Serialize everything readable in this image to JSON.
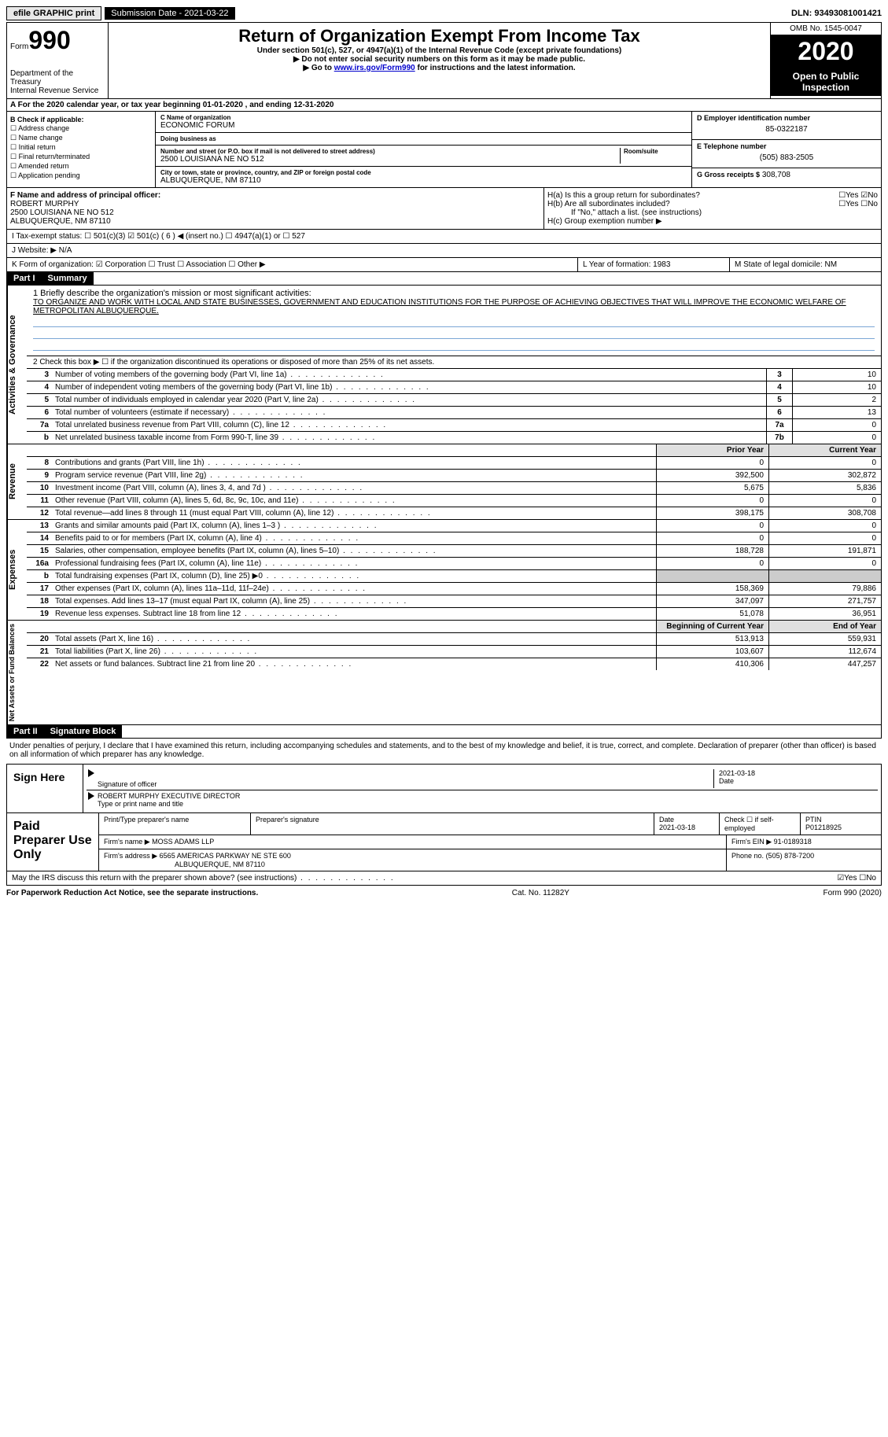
{
  "topbar": {
    "efile": "efile GRAPHIC print",
    "sub_label": "Submission Date - 2021-03-22",
    "dln": "DLN: 93493081001421"
  },
  "header": {
    "form_prefix": "Form",
    "form_num": "990",
    "dept": "Department of the Treasury",
    "irs": "Internal Revenue Service",
    "title": "Return of Organization Exempt From Income Tax",
    "subtitle": "Under section 501(c), 527, or 4947(a)(1) of the Internal Revenue Code (except private foundations)",
    "nossn": "▶ Do not enter social security numbers on this form as it may be made public.",
    "goto_pre": "▶ Go to ",
    "goto_link": "www.irs.gov/Form990",
    "goto_post": " for instructions and the latest information.",
    "omb": "OMB No. 1545-0047",
    "year": "2020",
    "open": "Open to Public Inspection"
  },
  "section_a": "A For the 2020 calendar year, or tax year beginning 01-01-2020    , and ending 12-31-2020",
  "col_b": {
    "label": "B Check if applicable:",
    "addr": "☐ Address change",
    "name": "☐ Name change",
    "initial": "☐ Initial return",
    "final": "☐ Final return/terminated",
    "amended": "☐ Amended return",
    "app": "☐ Application pending"
  },
  "col_c": {
    "name_label": "C Name of organization",
    "name": "ECONOMIC FORUM",
    "dba_label": "Doing business as",
    "dba": "",
    "street_label": "Number and street (or P.O. box if mail is not delivered to street address)",
    "street": "2500 LOUISIANA NE NO 512",
    "room_label": "Room/suite",
    "city_label": "City or town, state or province, country, and ZIP or foreign postal code",
    "city": "ALBUQUERQUE, NM  87110"
  },
  "col_de": {
    "ein_label": "D Employer identification number",
    "ein": "85-0322187",
    "phone_label": "E Telephone number",
    "phone": "(505) 883-2505",
    "gross_label": "G Gross receipts $",
    "gross": "308,708"
  },
  "row_f": {
    "label": "F Name and address of principal officer:",
    "name": "ROBERT MURPHY",
    "addr1": "2500 LOUISIANA NE NO 512",
    "addr2": "ALBUQUERQUE, NM  87110"
  },
  "row_h": {
    "ha": "H(a)  Is this a group return for subordinates?",
    "ha_ans": "☐Yes ☑No",
    "hb": "H(b)  Are all subordinates included?",
    "hb_ans": "☐Yes ☐No",
    "hb_note": "If \"No,\" attach a list. (see instructions)",
    "hc": "H(c)  Group exemption number ▶"
  },
  "row_i": "I    Tax-exempt status:     ☐ 501(c)(3)   ☑ 501(c) ( 6 ) ◀ (insert no.)    ☐ 4947(a)(1) or   ☐ 527",
  "row_j": "J   Website: ▶  N/A",
  "row_k": "K Form of organization:  ☑ Corporation  ☐ Trust  ☐ Association  ☐ Other ▶",
  "row_l": "L Year of formation: 1983",
  "row_m": "M State of legal domicile: NM",
  "part1": {
    "header": "Part I",
    "title": "Summary",
    "mission_label": "1  Briefly describe the organization's mission or most significant activities:",
    "mission": "TO ORGANIZE AND WORK WITH LOCAL AND STATE BUSINESSES, GOVERNMENT AND EDUCATION INSTITUTIONS FOR THE PURPOSE OF ACHIEVING OBJECTIVES THAT WILL IMPROVE THE ECONOMIC WELFARE OF METROPOLITAN ALBUQUERQUE.",
    "line2": "2   Check this box ▶ ☐  if the organization discontinued its operations or disposed of more than 25% of its net assets."
  },
  "side_labels": {
    "gov": "Activities & Governance",
    "rev": "Revenue",
    "exp": "Expenses",
    "net": "Net Assets or Fund Balances"
  },
  "gov_rows": [
    {
      "n": "3",
      "d": "Number of voting members of the governing body (Part VI, line 1a)",
      "b": "3",
      "v": "10"
    },
    {
      "n": "4",
      "d": "Number of independent voting members of the governing body (Part VI, line 1b)",
      "b": "4",
      "v": "10"
    },
    {
      "n": "5",
      "d": "Total number of individuals employed in calendar year 2020 (Part V, line 2a)",
      "b": "5",
      "v": "2"
    },
    {
      "n": "6",
      "d": "Total number of volunteers (estimate if necessary)",
      "b": "6",
      "v": "13"
    },
    {
      "n": "7a",
      "d": "Total unrelated business revenue from Part VIII, column (C), line 12",
      "b": "7a",
      "v": "0"
    },
    {
      "n": "b",
      "d": "Net unrelated business taxable income from Form 990-T, line 39",
      "b": "7b",
      "v": "0"
    }
  ],
  "yr_header": {
    "prior": "Prior Year",
    "current": "Current Year"
  },
  "rev_rows": [
    {
      "n": "8",
      "d": "Contributions and grants (Part VIII, line 1h)",
      "p": "0",
      "c": "0"
    },
    {
      "n": "9",
      "d": "Program service revenue (Part VIII, line 2g)",
      "p": "392,500",
      "c": "302,872"
    },
    {
      "n": "10",
      "d": "Investment income (Part VIII, column (A), lines 3, 4, and 7d )",
      "p": "5,675",
      "c": "5,836"
    },
    {
      "n": "11",
      "d": "Other revenue (Part VIII, column (A), lines 5, 6d, 8c, 9c, 10c, and 11e)",
      "p": "0",
      "c": "0"
    },
    {
      "n": "12",
      "d": "Total revenue—add lines 8 through 11 (must equal Part VIII, column (A), line 12)",
      "p": "398,175",
      "c": "308,708"
    }
  ],
  "exp_rows": [
    {
      "n": "13",
      "d": "Grants and similar amounts paid (Part IX, column (A), lines 1–3 )",
      "p": "0",
      "c": "0"
    },
    {
      "n": "14",
      "d": "Benefits paid to or for members (Part IX, column (A), line 4)",
      "p": "0",
      "c": "0"
    },
    {
      "n": "15",
      "d": "Salaries, other compensation, employee benefits (Part IX, column (A), lines 5–10)",
      "p": "188,728",
      "c": "191,871"
    },
    {
      "n": "16a",
      "d": "Professional fundraising fees (Part IX, column (A), line 11e)",
      "p": "0",
      "c": "0"
    },
    {
      "n": "b",
      "d": "Total fundraising expenses (Part IX, column (D), line 25) ▶0",
      "p": "",
      "c": "",
      "shaded": true
    },
    {
      "n": "17",
      "d": "Other expenses (Part IX, column (A), lines 11a–11d, 11f–24e)",
      "p": "158,369",
      "c": "79,886"
    },
    {
      "n": "18",
      "d": "Total expenses. Add lines 13–17 (must equal Part IX, column (A), line 25)",
      "p": "347,097",
      "c": "271,757"
    },
    {
      "n": "19",
      "d": "Revenue less expenses. Subtract line 18 from line 12",
      "p": "51,078",
      "c": "36,951"
    }
  ],
  "net_header": {
    "begin": "Beginning of Current Year",
    "end": "End of Year"
  },
  "net_rows": [
    {
      "n": "20",
      "d": "Total assets (Part X, line 16)",
      "p": "513,913",
      "c": "559,931"
    },
    {
      "n": "21",
      "d": "Total liabilities (Part X, line 26)",
      "p": "103,607",
      "c": "112,674"
    },
    {
      "n": "22",
      "d": "Net assets or fund balances. Subtract line 21 from line 20",
      "p": "410,306",
      "c": "447,257"
    }
  ],
  "part2": {
    "header": "Part II",
    "title": "Signature Block",
    "declare": "Under penalties of perjury, I declare that I have examined this return, including accompanying schedules and statements, and to the best of my knowledge and belief, it is true, correct, and complete. Declaration of preparer (other than officer) is based on all information of which preparer has any knowledge."
  },
  "sign": {
    "here": "Sign Here",
    "sig_label": "Signature of officer",
    "date": "2021-03-18",
    "date_label": "Date",
    "name": "ROBERT MURPHY  EXECUTIVE DIRECTOR",
    "name_label": "Type or print name and title"
  },
  "prep": {
    "left": "Paid Preparer Use Only",
    "h1": "Print/Type preparer's name",
    "h2": "Preparer's signature",
    "h3": "Date",
    "h3v": "2021-03-18",
    "h4": "Check ☐ if self-employed",
    "h5": "PTIN",
    "h5v": "P01218925",
    "firm_label": "Firm's name    ▶",
    "firm": "MOSS ADAMS LLP",
    "ein_label": "Firm's EIN ▶",
    "ein": "91-0189318",
    "addr_label": "Firm's address ▶",
    "addr1": "6565 AMERICAS PARKWAY NE STE 600",
    "addr2": "ALBUQUERQUE, NM  87110",
    "phone_label": "Phone no.",
    "phone": "(505) 878-7200"
  },
  "discuss": "May the IRS discuss this return with the preparer shown above? (see instructions)",
  "discuss_ans": "☑Yes  ☐No",
  "footer": {
    "left": "For Paperwork Reduction Act Notice, see the separate instructions.",
    "mid": "Cat. No. 11282Y",
    "right": "Form 990 (2020)"
  }
}
